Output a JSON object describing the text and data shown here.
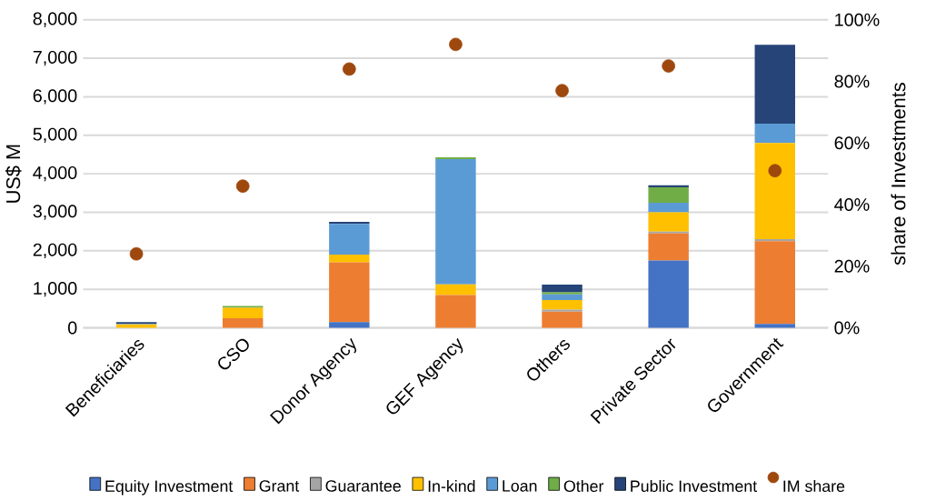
{
  "chart_data": {
    "type": "bar",
    "stacked": true,
    "ylabel": "US$ M",
    "y2label": "share of Investments",
    "categories": [
      "Beneficiaries",
      "CSO",
      "Donor Agency",
      "GEF Agency",
      "Others",
      "Private Sector",
      "Government"
    ],
    "series": [
      {
        "name": "Equity Investment",
        "color": "#4472c4",
        "values": [
          0,
          0,
          150,
          0,
          0,
          1750,
          100
        ]
      },
      {
        "name": "Grant",
        "color": "#ed7d31",
        "values": [
          0,
          250,
          1550,
          850,
          420,
          700,
          2150
        ]
      },
      {
        "name": "Guarantee",
        "color": "#a5a5a5",
        "values": [
          0,
          0,
          0,
          null,
          50,
          50,
          50
        ]
      },
      {
        "name": "In-kind",
        "color": "#ffc000",
        "values": [
          90,
          270,
          200,
          280,
          250,
          500,
          2500
        ]
      },
      {
        "name": "Loan",
        "color": "#5b9bd5",
        "values": [
          10,
          0,
          800,
          3250,
          150,
          250,
          500
        ]
      },
      {
        "name": "Other",
        "color": "#70ad47",
        "values": [
          0,
          50,
          0,
          50,
          50,
          400,
          0
        ]
      },
      {
        "name": "Public Investment",
        "color": "#264478",
        "values": [
          50,
          0,
          50,
          0,
          200,
          50,
          2050
        ]
      },
      {
        "name": "IM share",
        "color": "#9e480e",
        "type": "scatter",
        "axis": "y2",
        "values": [
          24,
          46,
          84,
          92,
          77,
          85,
          51
        ]
      }
    ],
    "ylim": [
      0,
      8000
    ],
    "yticks": [
      0,
      {
        "value": 1000,
        "label": "1,000"
      },
      {
        "value": 2000,
        "label": "2,000"
      },
      {
        "value": 3000,
        "label": "3,000"
      },
      {
        "value": 4000,
        "label": "4,000"
      },
      {
        "value": 5000,
        "label": "5,000"
      },
      {
        "value": 6000,
        "label": "6,000"
      },
      {
        "value": 7000,
        "label": "7,000"
      },
      {
        "value": 8000,
        "label": "8,000"
      }
    ],
    "y2lim": [
      0,
      100
    ],
    "y2ticks": [
      {
        "value": 0,
        "label": "0%"
      },
      {
        "value": 20,
        "label": "20%"
      },
      {
        "value": 40,
        "label": "40%"
      },
      {
        "value": 60,
        "label": "60%"
      },
      {
        "value": 80,
        "label": "80%"
      },
      {
        "value": 100,
        "label": "100%"
      }
    ],
    "grid": "y",
    "legend": "bottom"
  }
}
